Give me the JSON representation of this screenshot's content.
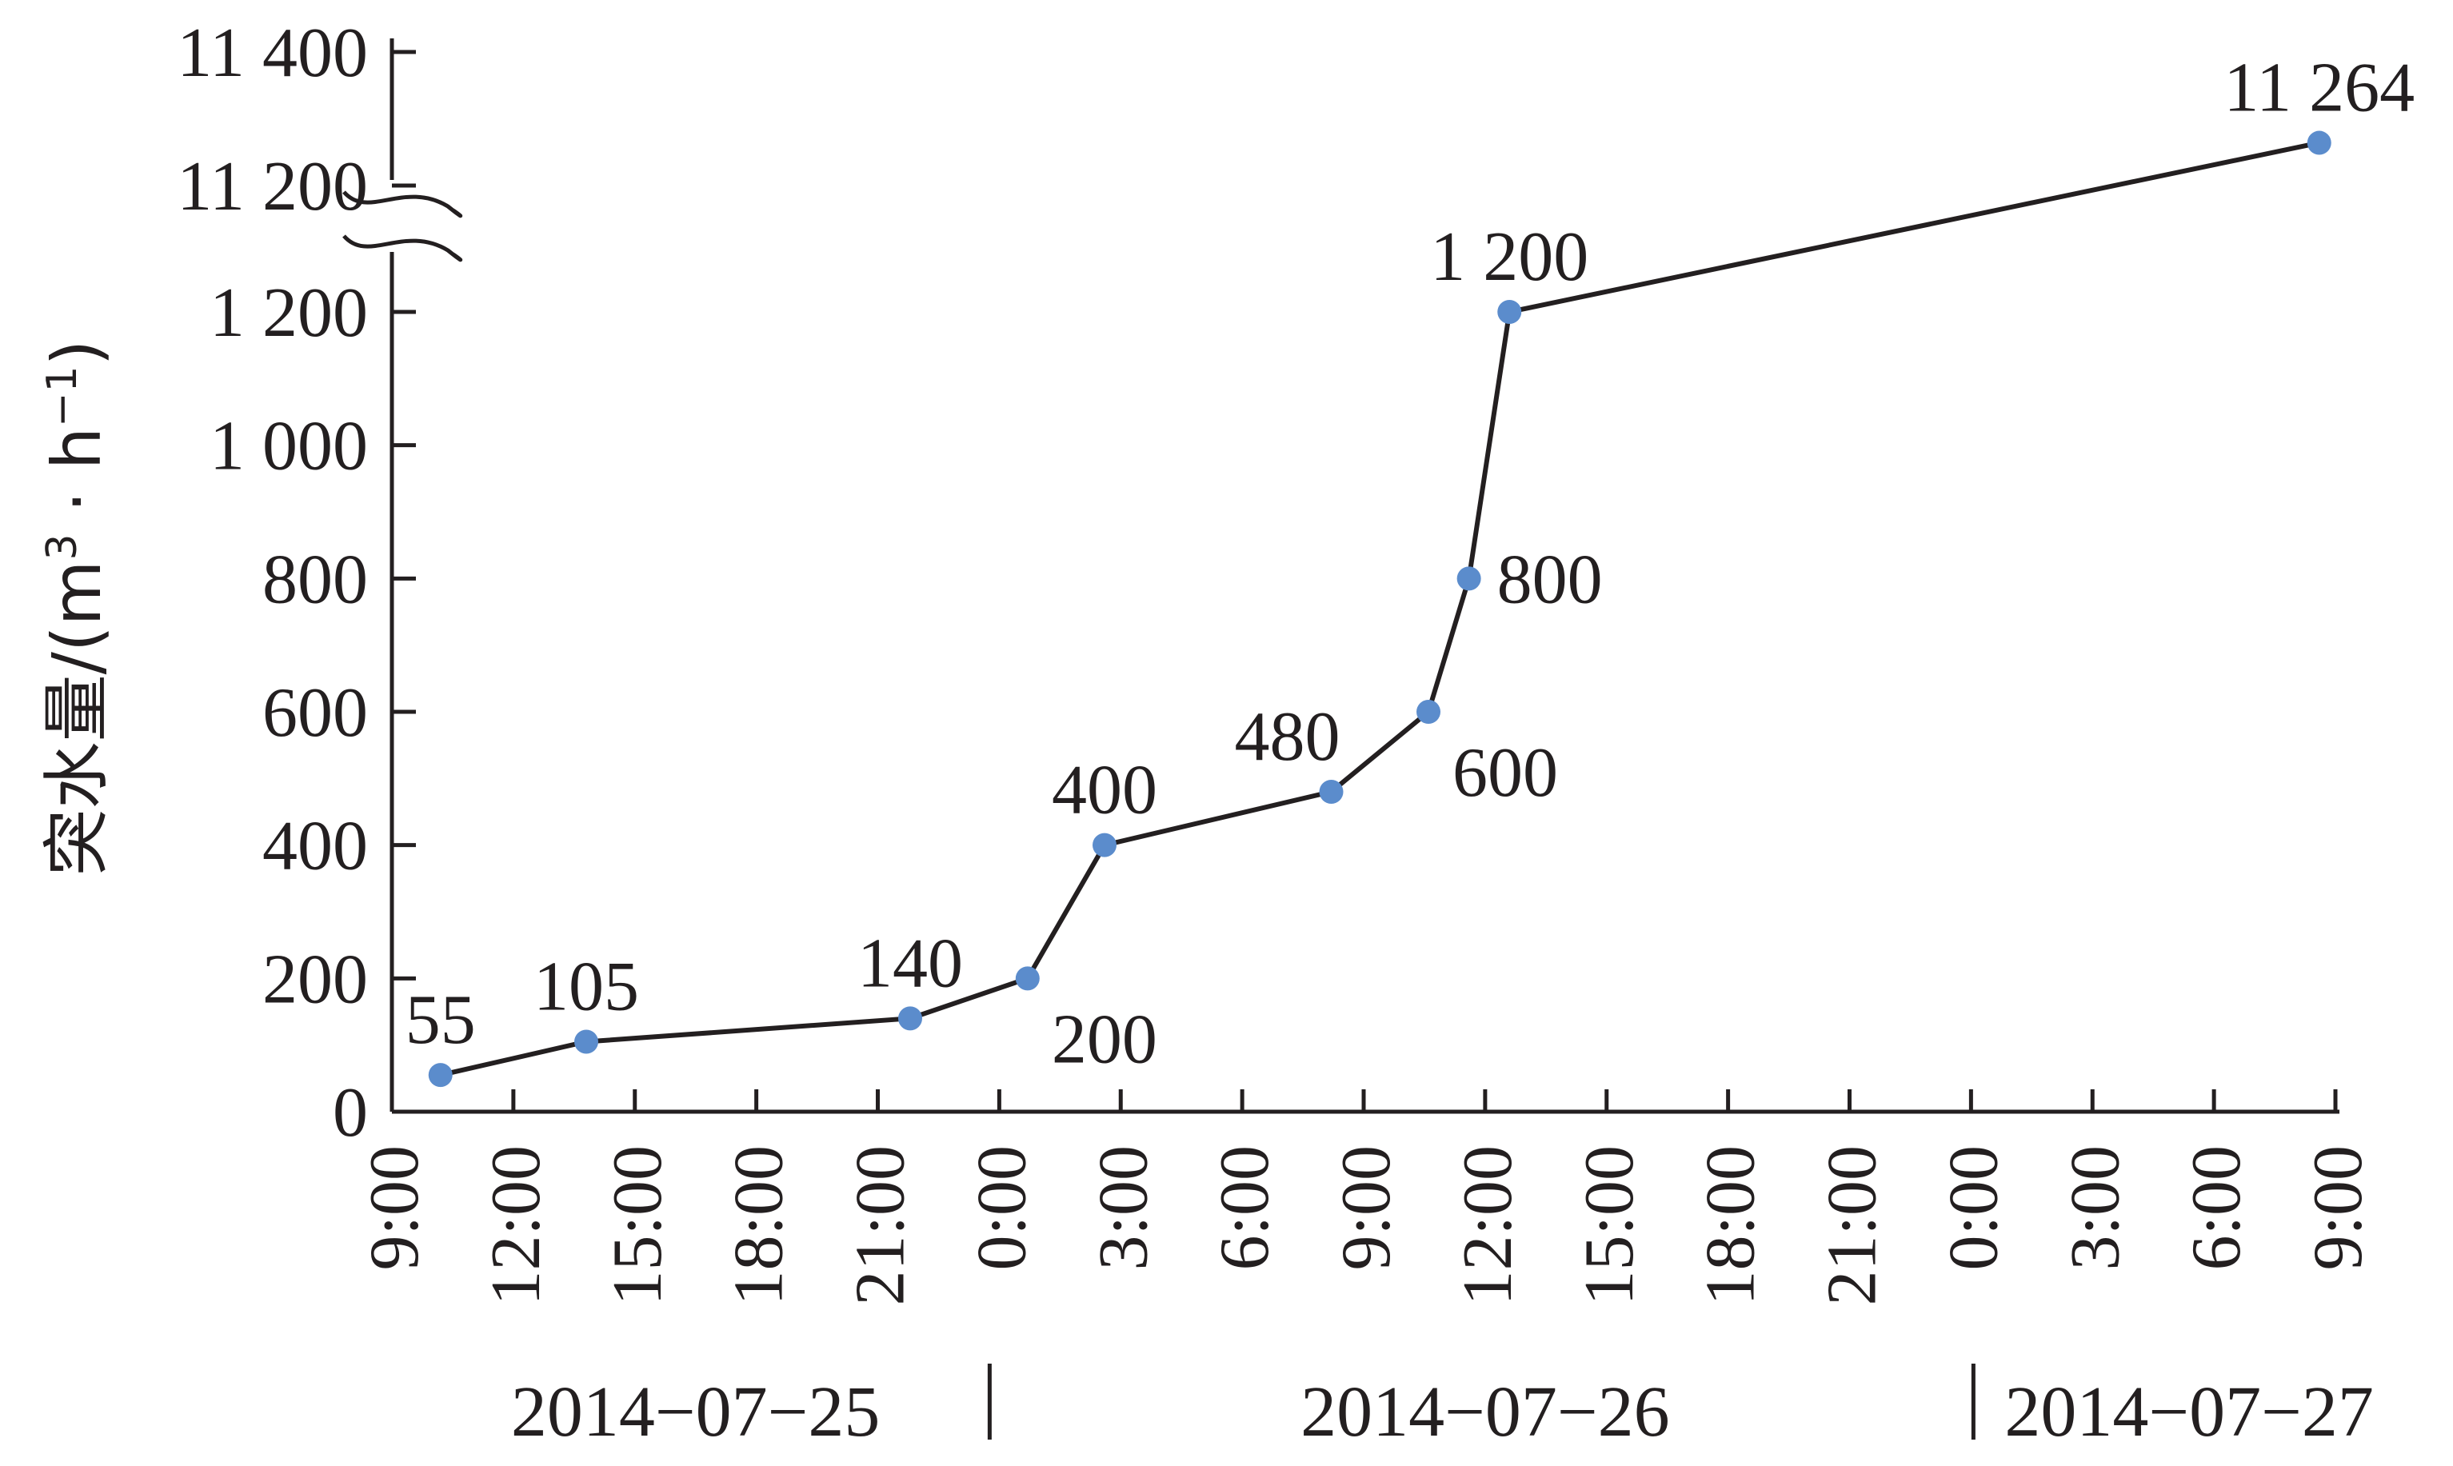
{
  "chart_data": {
    "type": "line",
    "title": "",
    "xlabel": "",
    "ylabel": "突水量/(m³ · h⁻¹)",
    "ylabel_parts": {
      "main": "突水量/(m",
      "sup1": "3",
      "mid": " · h",
      "sup2": "−1",
      "end": ")"
    },
    "x_unit": "hours since 2014-07-25 9:00",
    "ylim_lower": [
      0,
      1300
    ],
    "ylim_upper": [
      11160,
      11400
    ],
    "y_break_between": [
      1300,
      11160
    ],
    "y_ticks_lower": [
      0,
      200,
      400,
      600,
      800,
      1000,
      1200
    ],
    "y_tick_labels_lower": [
      "0",
      "200",
      "400",
      "600",
      "800",
      "1 000",
      "1 200"
    ],
    "y_ticks_upper": [
      11200,
      11400
    ],
    "y_tick_labels_upper": [
      "11 200",
      "11 400"
    ],
    "xlim": [
      0,
      48
    ],
    "x_ticks": [
      0,
      3,
      6,
      9,
      12,
      15,
      18,
      21,
      24,
      27,
      30,
      33,
      36,
      39,
      42,
      45,
      48
    ],
    "x_tick_labels": [
      "9:00",
      "12:00",
      "15:00",
      "18:00",
      "21:00",
      "0:00",
      "3:00",
      "6:00",
      "9:00",
      "12:00",
      "15:00",
      "18:00",
      "21:00",
      "0:00",
      "3:00",
      "6:00",
      "9:00"
    ],
    "date_labels": [
      {
        "text": "2014−07−25",
        "start": 0,
        "end": 15
      },
      {
        "text": "2014−07−26",
        "start": 15,
        "end": 39
      },
      {
        "text": "2014−07−27",
        "start": 39,
        "end": 48
      }
    ],
    "day_separators": [
      15,
      39
    ],
    "grid": false,
    "legend": "none",
    "series": [
      {
        "color": "#5b8ccc",
        "line_color": "#231f20",
        "points": [
          {
            "x": 1.2,
            "y": 55,
            "label": "55",
            "pos": "above"
          },
          {
            "x": 4.8,
            "y": 105,
            "label": "105",
            "pos": "above"
          },
          {
            "x": 12.8,
            "y": 140,
            "label": "140",
            "pos": "above"
          },
          {
            "x": 15.7,
            "y": 200,
            "label": "200",
            "pos": "below-right"
          },
          {
            "x": 17.6,
            "y": 400,
            "label": "400",
            "pos": "above"
          },
          {
            "x": 23.2,
            "y": 480,
            "label": "480",
            "pos": "above-left"
          },
          {
            "x": 25.6,
            "y": 600,
            "label": "600",
            "pos": "below-right"
          },
          {
            "x": 26.6,
            "y": 800,
            "label": "800",
            "pos": "right"
          },
          {
            "x": 27.6,
            "y": 1200,
            "label": "1 200",
            "pos": "above"
          },
          {
            "x": 47.6,
            "y": 11264,
            "label": "11 264",
            "pos": "above"
          }
        ]
      }
    ]
  }
}
